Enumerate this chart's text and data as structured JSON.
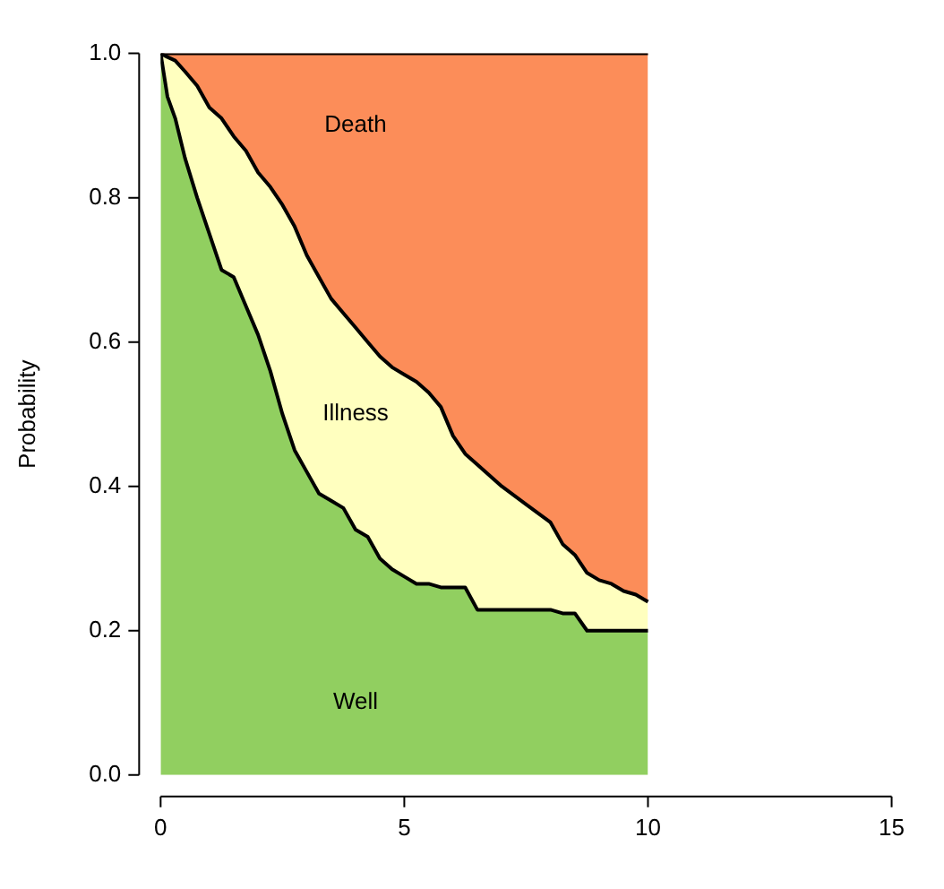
{
  "chart_data": {
    "type": "area",
    "stacked": true,
    "ylabel": "Probability",
    "legend": false,
    "grid": false,
    "x": [
      0,
      0.14,
      0.3,
      0.5,
      0.75,
      1,
      1.25,
      1.5,
      1.75,
      2,
      2.25,
      2.5,
      2.75,
      3,
      3.25,
      3.5,
      3.75,
      4,
      4.25,
      4.5,
      4.75,
      5,
      5.25,
      5.5,
      5.75,
      6,
      6.25,
      6.5,
      7,
      7.5,
      8,
      8.25,
      8.5,
      8.75,
      9,
      9.25,
      9.5,
      9.75,
      10
    ],
    "series": [
      {
        "name": "Well",
        "color": "#91cf60",
        "values": [
          1.0,
          0.94,
          0.91,
          0.855,
          0.8,
          0.75,
          0.7,
          0.69,
          0.65,
          0.61,
          0.56,
          0.5,
          0.45,
          0.42,
          0.39,
          0.38,
          0.37,
          0.34,
          0.33,
          0.3,
          0.285,
          0.275,
          0.265,
          0.265,
          0.26,
          0.26,
          0.26,
          0.229,
          0.229,
          0.229,
          0.229,
          0.224,
          0.224,
          0.2,
          0.2,
          0.2,
          0.2,
          0.2,
          0.2
        ]
      },
      {
        "name": "Illness",
        "color": "#ffffbf",
        "values": [
          0,
          0.055,
          0.08,
          0.12,
          0.155,
          0.175,
          0.21,
          0.195,
          0.215,
          0.225,
          0.255,
          0.29,
          0.31,
          0.3,
          0.3,
          0.28,
          0.27,
          0.28,
          0.27,
          0.28,
          0.28,
          0.28,
          0.28,
          0.265,
          0.25,
          0.21,
          0.185,
          0.201,
          0.171,
          0.146,
          0.121,
          0.096,
          0.081,
          0.08,
          0.07,
          0.065,
          0.055,
          0.05,
          0.04
        ]
      },
      {
        "name": "Death",
        "color": "#fc8d59",
        "values": [
          0,
          0.005,
          0.01,
          0.025,
          0.045,
          0.075,
          0.09,
          0.115,
          0.135,
          0.165,
          0.185,
          0.21,
          0.24,
          0.28,
          0.31,
          0.34,
          0.36,
          0.38,
          0.4,
          0.42,
          0.435,
          0.445,
          0.455,
          0.47,
          0.49,
          0.53,
          0.555,
          0.57,
          0.6,
          0.625,
          0.65,
          0.68,
          0.695,
          0.72,
          0.73,
          0.735,
          0.745,
          0.75,
          0.76
        ]
      }
    ],
    "xlim": [
      0,
      15
    ],
    "ylim": [
      0,
      1
    ],
    "xticks": [
      0,
      5,
      10,
      15
    ],
    "yticks": [
      {
        "value": 0,
        "label": "0.0"
      },
      {
        "value": 0.2,
        "label": "0.2"
      },
      {
        "value": 0.4,
        "label": "0.4"
      },
      {
        "value": 0.6,
        "label": "0.6"
      },
      {
        "value": 0.8,
        "label": "0.8"
      },
      {
        "value": 1,
        "label": "1.0"
      }
    ]
  }
}
